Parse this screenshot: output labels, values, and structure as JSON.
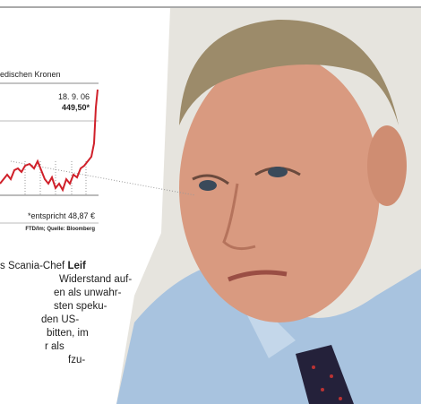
{
  "chart": {
    "caption": "edischen Kronen",
    "date": "18. 9. 06",
    "last_value": "449,50*",
    "footnote": "*entspricht 48,87 €",
    "source": "FTD/lm; Quelle: Bloomberg"
  },
  "body": {
    "lead": "s Scania-Chef",
    "bold": "Leif",
    "lines": [
      "Widerstand auf-",
      "en als unwahr-",
      "sten speku-",
      "den US-",
      "bitten, im",
      "r als",
      "fzu-"
    ]
  }
}
